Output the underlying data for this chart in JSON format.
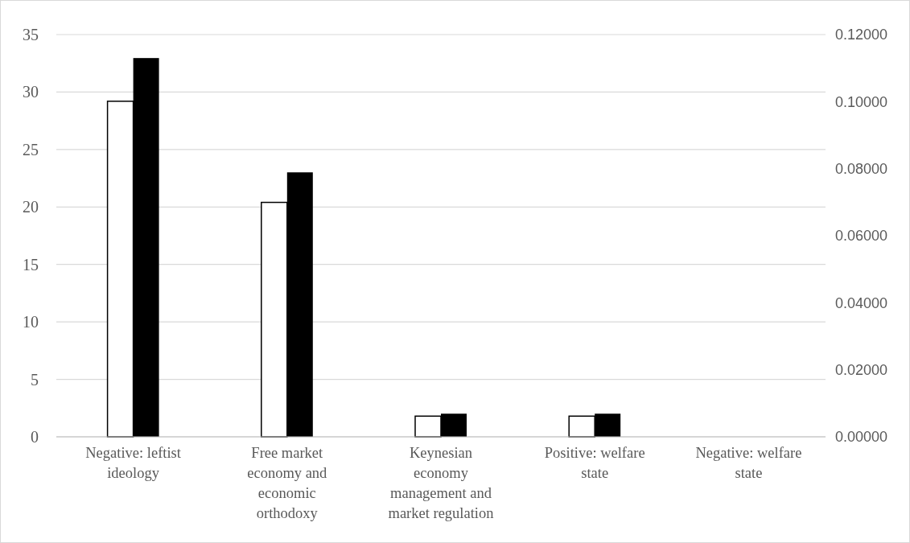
{
  "chart_data": {
    "type": "bar",
    "categories": [
      "Negative: leftist ideology",
      "Free market economy and economic orthodoxy",
      "Keynesian economy management and market regulation",
      "Positive: welfare state",
      "Negative: welfare state"
    ],
    "series": [
      {
        "color": "#ffffff",
        "values": [
          29.2,
          20.4,
          1.8,
          1.8,
          0
        ]
      },
      {
        "color": "#000000",
        "axis": "y2",
        "values": [
          0.113,
          0.0789,
          0.0069,
          0.0069,
          0
        ]
      }
    ],
    "ylim": [
      0,
      35
    ],
    "yticks": [
      0,
      5,
      10,
      15,
      20,
      25,
      30,
      35
    ],
    "y2lim": [
      0,
      0.12
    ],
    "y2ticks": [
      {
        "value": 0,
        "label": "0.00000"
      },
      {
        "value": 0.02,
        "label": "0.02000"
      },
      {
        "value": 0.04,
        "label": "0.04000"
      },
      {
        "value": 0.06,
        "label": "0.06000"
      },
      {
        "value": 0.08,
        "label": "0.08000"
      },
      {
        "value": 0.1,
        "label": "0.10000"
      },
      {
        "value": 0.12,
        "label": "0.12000"
      }
    ],
    "grid": "y"
  }
}
